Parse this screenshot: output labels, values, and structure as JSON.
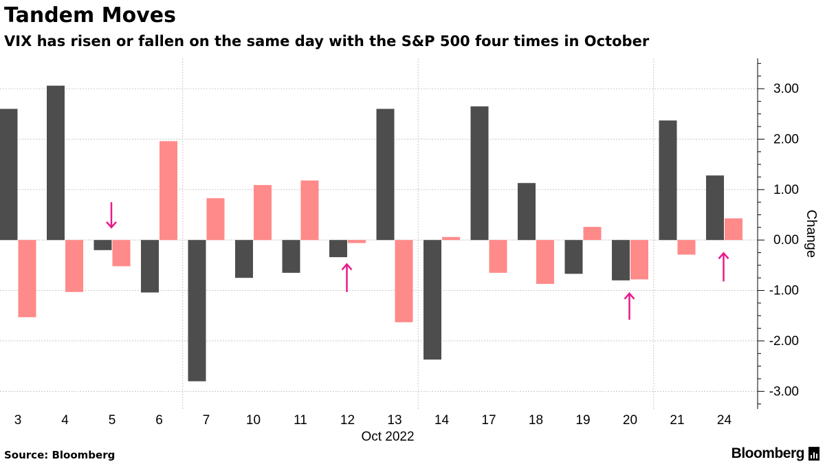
{
  "header": {
    "title": "Tandem Moves",
    "subtitle": "VIX has risen or fallen on the same day with the S&P 500 four times in October"
  },
  "footer": {
    "source": "Source: Bloomberg",
    "logo_text": "Bloomberg"
  },
  "colors": {
    "series_dark": "#4d4d4d",
    "series_pink": "#ff8a8a",
    "arrow": "#e8198b",
    "grid": "#c8c8c8"
  },
  "chart_data": {
    "type": "bar",
    "categories": [
      "3",
      "4",
      "5",
      "6",
      "7",
      "10",
      "11",
      "12",
      "13",
      "14",
      "17",
      "18",
      "19",
      "20",
      "21",
      "24"
    ],
    "x_sublabel": "Oct 2022",
    "series": [
      {
        "color": "#4d4d4d",
        "values": [
          2.6,
          3.06,
          -0.2,
          -1.04,
          -2.8,
          -0.75,
          -0.65,
          -0.34,
          2.6,
          -2.37,
          2.65,
          1.13,
          -0.67,
          -0.8,
          2.37,
          1.28
        ]
      },
      {
        "color": "#ff8a8a",
        "values": [
          -1.53,
          -1.03,
          -0.52,
          1.96,
          0.83,
          1.09,
          1.18,
          -0.06,
          -1.63,
          0.06,
          -0.65,
          -0.87,
          0.26,
          -0.78,
          -0.29,
          0.43
        ]
      }
    ],
    "ylabel": "Change",
    "ylim": [
      -3.35,
      3.6
    ],
    "yticks": [
      3,
      2,
      1,
      0,
      -1,
      -2,
      -3
    ],
    "ytick_labels": [
      "3.00",
      "2.00",
      "1.00",
      "0.00",
      "-1.00",
      "-2.00",
      "-3.00"
    ],
    "y_axis_side": "right",
    "vertical_grid_after_categories": [
      "6",
      "13",
      "20"
    ],
    "arrows": [
      {
        "category": "5",
        "direction": "down",
        "from_value": 0.75,
        "to_value": 0.25
      },
      {
        "category": "12",
        "direction": "up",
        "from_value": -1.03,
        "to_value": -0.48
      },
      {
        "category": "20",
        "direction": "up",
        "from_value": -1.58,
        "to_value": -1.06
      },
      {
        "category": "24",
        "direction": "up",
        "from_value": -0.82,
        "to_value": -0.26
      }
    ]
  }
}
